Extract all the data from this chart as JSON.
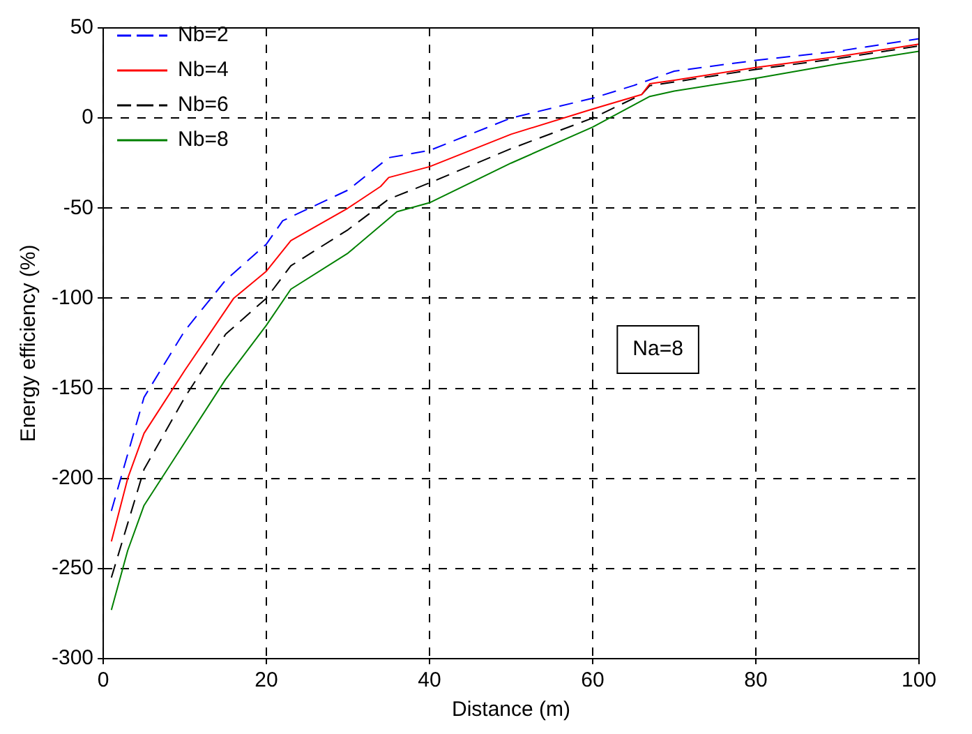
{
  "chart_data": {
    "type": "line",
    "xlabel": "Distance (m)",
    "ylabel": "Energy efficiency (%)",
    "xlim": [
      0,
      100
    ],
    "xticks": [
      0,
      20,
      40,
      60,
      80,
      100
    ],
    "ylim": [
      -300,
      50
    ],
    "yticks": [
      -300,
      -250,
      -200,
      -150,
      -100,
      -50,
      0,
      50
    ],
    "grid": true,
    "legend": "top left",
    "marker": "none",
    "annotations": [
      "Na=8"
    ],
    "series": [
      {
        "name": "Nb=2",
        "color": "#0000ff",
        "line_style": "dashed",
        "x": [
          1,
          5,
          10,
          15,
          20,
          22,
          30,
          35,
          40,
          50,
          60,
          65,
          70,
          80,
          90,
          100
        ],
        "values": [
          -218,
          -155,
          -118,
          -90,
          -70,
          -57,
          -40,
          -22,
          -18,
          0,
          11,
          18,
          26,
          32,
          37,
          44
        ]
      },
      {
        "name": "Nb=4",
        "color": "#ff0000",
        "line_style": "solid",
        "x": [
          1,
          3,
          5,
          10,
          16,
          20,
          23,
          30,
          34,
          35,
          40,
          45,
          50,
          60,
          66,
          67,
          70,
          80,
          90,
          100
        ],
        "values": [
          -235,
          -200,
          -175,
          -140,
          -100,
          -85,
          -68,
          -50,
          -38,
          -33,
          -27,
          -18,
          -9,
          5,
          13,
          19,
          21,
          28,
          34,
          41
        ]
      },
      {
        "name": "Nb=6",
        "color": "#000000",
        "line_style": "dashed",
        "x": [
          1,
          5,
          10,
          15,
          20,
          23,
          30,
          35,
          40,
          50,
          60,
          66,
          67,
          70,
          80,
          90,
          100
        ],
        "values": [
          -255,
          -195,
          -155,
          -120,
          -100,
          -82,
          -62,
          -45,
          -36,
          -17,
          0,
          13,
          18,
          20,
          27,
          33,
          40
        ]
      },
      {
        "name": "Nb=8",
        "color": "#008000",
        "line_style": "solid",
        "x": [
          1,
          3,
          5,
          10,
          15,
          20,
          23,
          30,
          36,
          40,
          50,
          60,
          67,
          70,
          80,
          90,
          100
        ],
        "values": [
          -273,
          -240,
          -215,
          -180,
          -145,
          -115,
          -95,
          -75,
          -52,
          -47,
          -25,
          -5,
          12,
          15,
          22,
          30,
          37
        ]
      }
    ]
  }
}
